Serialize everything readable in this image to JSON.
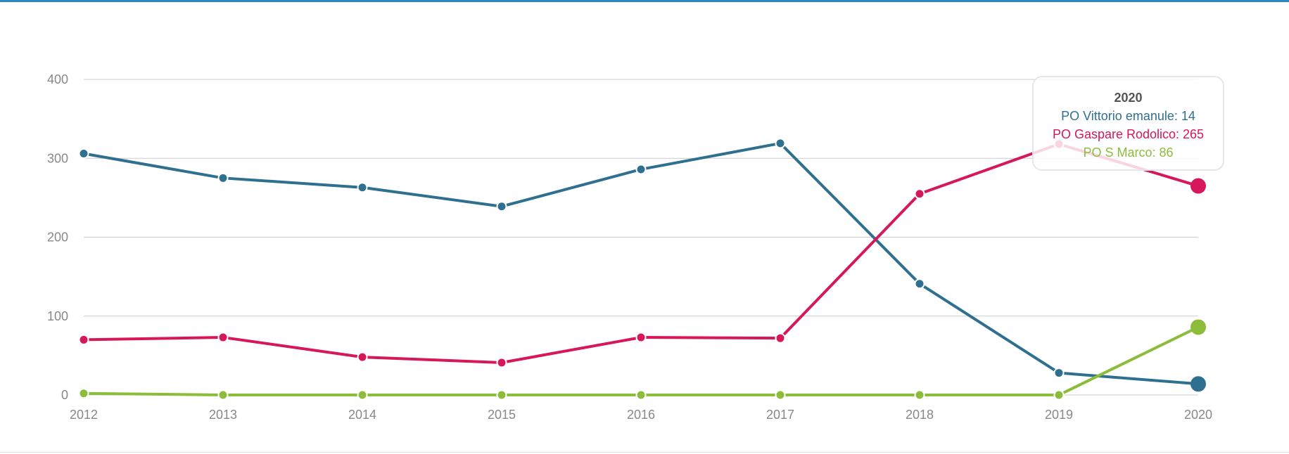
{
  "chart_data": {
    "type": "line",
    "x": [
      "2012",
      "2013",
      "2014",
      "2015",
      "2016",
      "2017",
      "2018",
      "2019",
      "2020"
    ],
    "ylim": [
      0,
      400
    ],
    "yticks": [
      "0",
      "100",
      "200",
      "300",
      "400"
    ],
    "grid": true,
    "series": [
      {
        "name": "PO Vittorio emanule",
        "color": "#2f6f8f",
        "values": [
          306,
          275,
          263,
          239,
          286,
          319,
          141,
          28,
          14
        ]
      },
      {
        "name": "PO Gaspare Rodolico",
        "color": "#d6175a",
        "values": [
          70,
          73,
          48,
          41,
          73,
          72,
          255,
          318,
          265
        ]
      },
      {
        "name": "PO S Marco",
        "color": "#8bbd3a",
        "values": [
          2,
          0,
          0,
          0,
          0,
          0,
          0,
          0,
          86
        ]
      }
    ],
    "tooltip": {
      "title": "2020",
      "lines": [
        "PO Vittorio emanule: 14",
        "PO Gaspare Rodolico: 265",
        "PO S Marco: 86"
      ]
    }
  }
}
